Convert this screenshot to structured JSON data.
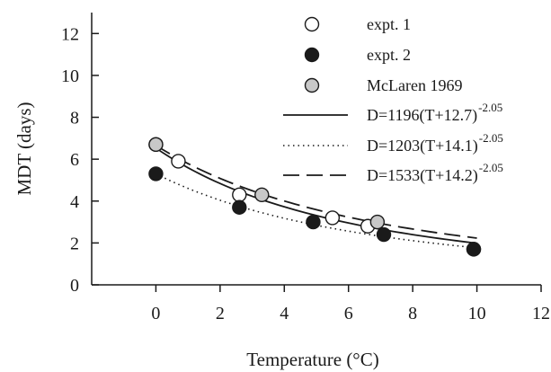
{
  "chart_data": {
    "type": "scatter",
    "xlabel": "Temperature (°C)",
    "ylabel": "MDT (days)",
    "xlim": [
      -2,
      12
    ],
    "ylim": [
      0,
      13
    ],
    "x_ticks": [
      0,
      2,
      4,
      6,
      8,
      10,
      12
    ],
    "y_ticks": [
      0,
      2,
      4,
      6,
      8,
      10,
      12
    ],
    "grid": false,
    "legend_position": "top-right",
    "series": [
      {
        "name": "expt. 1",
        "marker": "circle-open",
        "color": "#ffffff",
        "x": [
          0.0,
          0.7,
          2.6,
          5.5,
          6.6,
          9.9
        ],
        "y": [
          6.7,
          5.9,
          4.3,
          3.2,
          2.8,
          1.7
        ]
      },
      {
        "name": "expt. 2",
        "marker": "circle-filled",
        "color": "#1a1a1a",
        "x": [
          0.0,
          2.6,
          4.9,
          7.1,
          9.9
        ],
        "y": [
          5.3,
          3.7,
          3.0,
          2.4,
          1.7
        ]
      },
      {
        "name": "McLaren 1969",
        "marker": "circle-grey",
        "color": "#c8c8c8",
        "x": [
          0.0,
          3.3,
          6.9
        ],
        "y": [
          6.7,
          4.3,
          3.0
        ]
      }
    ],
    "curves": [
      {
        "label": "D=1196(T+12.7)",
        "exponent": "-2.05",
        "style": "solid",
        "a": 1196,
        "b": 12.7,
        "c": -2.05,
        "x_range": [
          0,
          10
        ]
      },
      {
        "label": "D=1203(T+14.1)",
        "exponent": "-2.05",
        "style": "dotted",
        "a": 1203,
        "b": 14.1,
        "c": -2.05,
        "x_range": [
          0,
          10
        ]
      },
      {
        "label": "D=1533(T+14.2)",
        "exponent": "-2.05",
        "style": "dashed",
        "a": 1533,
        "b": 14.2,
        "c": -2.05,
        "x_range": [
          0,
          10
        ]
      }
    ]
  }
}
